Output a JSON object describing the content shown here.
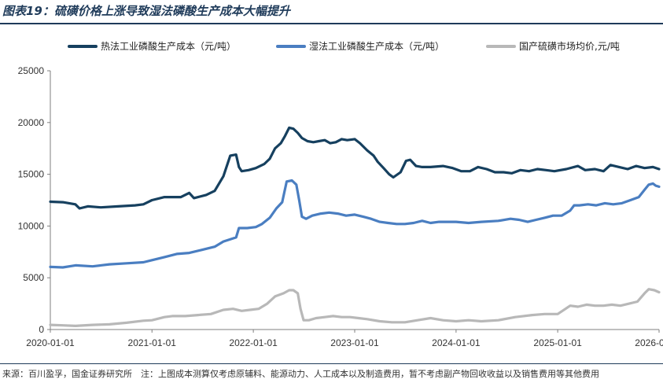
{
  "header": {
    "title": "图表19：硫磺价格上涨导致湿法磷酸生产成本大幅提升"
  },
  "footer": {
    "source": "来源：百川盈孚，国金证券研究所　注：上图成本测算仅考虑原辅料、能源动力、人工成本以及制造费用，暂不考虑副产物回收收益以及销售费用等其他费用"
  },
  "chart_data": {
    "type": "line",
    "title": "",
    "xlabel": "",
    "ylabel": "",
    "ylim": [
      0,
      25000
    ],
    "xlim": [
      "2020-01-01",
      "2026-01-01"
    ],
    "y_ticks": [
      0,
      5000,
      10000,
      15000,
      20000,
      25000
    ],
    "y_tick_labels": [
      "0",
      "5000",
      "10000",
      "15000",
      "20000",
      "25000"
    ],
    "x_ticks": [
      "2020-01-01",
      "2021-01-01",
      "2022-01-01",
      "2023-01-01",
      "2024-01-01",
      "2025-01-01",
      "2026-01-01"
    ],
    "x_tick_labels": [
      "2020-01-01",
      "2021-01-01",
      "2022-01-01",
      "2023-01-01",
      "2024-01-01",
      "2025-01-01",
      "2026-01-01"
    ],
    "grid": false,
    "legend_position": "top",
    "series": [
      {
        "name": "热法工业磷酸生产成本（元/吨）",
        "color": "#16405f",
        "points": [
          [
            "2020-01-01",
            12350
          ],
          [
            "2020-02-15",
            12300
          ],
          [
            "2020-03-31",
            12100
          ],
          [
            "2020-04-15",
            11700
          ],
          [
            "2020-05-15",
            11900
          ],
          [
            "2020-07-01",
            11800
          ],
          [
            "2020-09-01",
            11900
          ],
          [
            "2020-11-01",
            12000
          ],
          [
            "2020-12-01",
            12100
          ],
          [
            "2021-01-01",
            12500
          ],
          [
            "2021-02-15",
            12800
          ],
          [
            "2021-04-15",
            12800
          ],
          [
            "2021-05-15",
            13200
          ],
          [
            "2021-06-01",
            12700
          ],
          [
            "2021-07-15",
            13000
          ],
          [
            "2021-08-15",
            13400
          ],
          [
            "2021-09-15",
            14800
          ],
          [
            "2021-10-10",
            16800
          ],
          [
            "2021-10-31",
            16900
          ],
          [
            "2021-11-10",
            15700
          ],
          [
            "2021-11-20",
            15300
          ],
          [
            "2021-12-15",
            15400
          ],
          [
            "2022-01-10",
            15600
          ],
          [
            "2022-02-10",
            16000
          ],
          [
            "2022-03-01",
            16500
          ],
          [
            "2022-03-20",
            17500
          ],
          [
            "2022-04-10",
            18000
          ],
          [
            "2022-04-25",
            18700
          ],
          [
            "2022-05-10",
            19500
          ],
          [
            "2022-05-25",
            19400
          ],
          [
            "2022-06-10",
            19000
          ],
          [
            "2022-06-25",
            18500
          ],
          [
            "2022-07-15",
            18200
          ],
          [
            "2022-08-05",
            18100
          ],
          [
            "2022-08-25",
            18200
          ],
          [
            "2022-09-15",
            18300
          ],
          [
            "2022-10-05",
            18000
          ],
          [
            "2022-10-25",
            18100
          ],
          [
            "2022-11-15",
            18400
          ],
          [
            "2022-12-05",
            18300
          ],
          [
            "2023-01-01",
            18400
          ],
          [
            "2023-01-20",
            18000
          ],
          [
            "2023-02-15",
            17300
          ],
          [
            "2023-03-10",
            16800
          ],
          [
            "2023-03-25",
            16200
          ],
          [
            "2023-04-15",
            15600
          ],
          [
            "2023-05-05",
            15000
          ],
          [
            "2023-05-20",
            14700
          ],
          [
            "2023-06-15",
            15200
          ],
          [
            "2023-07-05",
            16300
          ],
          [
            "2023-07-20",
            16400
          ],
          [
            "2023-08-10",
            15800
          ],
          [
            "2023-09-01",
            15700
          ],
          [
            "2023-10-01",
            15700
          ],
          [
            "2023-11-15",
            15800
          ],
          [
            "2023-12-20",
            15600
          ],
          [
            "2024-01-20",
            15300
          ],
          [
            "2024-02-20",
            15300
          ],
          [
            "2024-03-20",
            15700
          ],
          [
            "2024-04-20",
            15500
          ],
          [
            "2024-05-20",
            15200
          ],
          [
            "2024-06-20",
            15200
          ],
          [
            "2024-07-20",
            15100
          ],
          [
            "2024-08-20",
            15400
          ],
          [
            "2024-09-20",
            15300
          ],
          [
            "2024-10-20",
            15500
          ],
          [
            "2024-11-20",
            15400
          ],
          [
            "2024-12-20",
            15300
          ],
          [
            "2025-02-01",
            15500
          ],
          [
            "2025-03-15",
            15800
          ],
          [
            "2025-04-10",
            15400
          ],
          [
            "2025-05-15",
            15500
          ],
          [
            "2025-06-15",
            15300
          ],
          [
            "2025-07-10",
            15900
          ],
          [
            "2025-08-10",
            15700
          ],
          [
            "2025-09-10",
            15500
          ],
          [
            "2025-10-10",
            15800
          ],
          [
            "2025-11-10",
            15600
          ],
          [
            "2025-12-10",
            15700
          ],
          [
            "2026-01-01",
            15500
          ]
        ]
      },
      {
        "name": "湿法工业磷酸生产成本（元/吨）",
        "color": "#4a7ec1",
        "points": [
          [
            "2020-01-01",
            6050
          ],
          [
            "2020-02-15",
            6000
          ],
          [
            "2020-04-01",
            6200
          ],
          [
            "2020-06-01",
            6100
          ],
          [
            "2020-08-01",
            6300
          ],
          [
            "2020-10-01",
            6400
          ],
          [
            "2020-12-01",
            6500
          ],
          [
            "2021-01-01",
            6700
          ],
          [
            "2021-02-15",
            7000
          ],
          [
            "2021-03-31",
            7300
          ],
          [
            "2021-05-15",
            7400
          ],
          [
            "2021-06-30",
            7700
          ],
          [
            "2021-08-15",
            8000
          ],
          [
            "2021-09-15",
            8500
          ],
          [
            "2021-10-31",
            8900
          ],
          [
            "2021-11-10",
            9800
          ],
          [
            "2021-12-10",
            9800
          ],
          [
            "2022-01-10",
            9900
          ],
          [
            "2022-02-01",
            10200
          ],
          [
            "2022-03-01",
            10800
          ],
          [
            "2022-03-25",
            11700
          ],
          [
            "2022-04-15",
            12300
          ],
          [
            "2022-05-01",
            14300
          ],
          [
            "2022-05-20",
            14400
          ],
          [
            "2022-06-05",
            14000
          ],
          [
            "2022-06-15",
            12500
          ],
          [
            "2022-06-25",
            10900
          ],
          [
            "2022-07-10",
            10700
          ],
          [
            "2022-08-01",
            11000
          ],
          [
            "2022-09-01",
            11200
          ],
          [
            "2022-10-01",
            11300
          ],
          [
            "2022-11-01",
            11200
          ],
          [
            "2022-12-01",
            11000
          ],
          [
            "2023-01-01",
            11100
          ],
          [
            "2023-02-01",
            10900
          ],
          [
            "2023-03-01",
            10700
          ],
          [
            "2023-04-01",
            10400
          ],
          [
            "2023-05-01",
            10300
          ],
          [
            "2023-06-01",
            10200
          ],
          [
            "2023-07-01",
            10200
          ],
          [
            "2023-08-01",
            10300
          ],
          [
            "2023-09-01",
            10500
          ],
          [
            "2023-10-01",
            10300
          ],
          [
            "2023-11-01",
            10400
          ],
          [
            "2023-12-01",
            10400
          ],
          [
            "2024-01-01",
            10400
          ],
          [
            "2024-02-15",
            10300
          ],
          [
            "2024-04-01",
            10400
          ],
          [
            "2024-06-01",
            10500
          ],
          [
            "2024-07-15",
            10700
          ],
          [
            "2024-08-15",
            10600
          ],
          [
            "2024-09-15",
            10400
          ],
          [
            "2024-10-15",
            10600
          ],
          [
            "2024-11-15",
            10800
          ],
          [
            "2024-12-15",
            11000
          ],
          [
            "2025-01-15",
            11000
          ],
          [
            "2025-02-15",
            11500
          ],
          [
            "2025-03-01",
            12000
          ],
          [
            "2025-03-20",
            12000
          ],
          [
            "2025-04-20",
            12100
          ],
          [
            "2025-05-20",
            12000
          ],
          [
            "2025-06-20",
            12200
          ],
          [
            "2025-07-20",
            12100
          ],
          [
            "2025-08-20",
            12200
          ],
          [
            "2025-09-20",
            12500
          ],
          [
            "2025-10-20",
            12800
          ],
          [
            "2025-11-10",
            13500
          ],
          [
            "2025-11-25",
            14000
          ],
          [
            "2025-12-10",
            14100
          ],
          [
            "2025-12-20",
            13900
          ],
          [
            "2026-01-01",
            13800
          ]
        ]
      },
      {
        "name": "国产硫磺市场均价,元/吨",
        "color": "#b8b8b8",
        "points": [
          [
            "2020-01-01",
            450
          ],
          [
            "2020-02-15",
            400
          ],
          [
            "2020-04-01",
            350
          ],
          [
            "2020-06-01",
            450
          ],
          [
            "2020-08-01",
            500
          ],
          [
            "2020-10-01",
            650
          ],
          [
            "2020-12-01",
            850
          ],
          [
            "2021-01-01",
            900
          ],
          [
            "2021-02-15",
            1200
          ],
          [
            "2021-03-15",
            1300
          ],
          [
            "2021-05-01",
            1300
          ],
          [
            "2021-06-15",
            1400
          ],
          [
            "2021-08-01",
            1500
          ],
          [
            "2021-09-15",
            1900
          ],
          [
            "2021-10-20",
            2000
          ],
          [
            "2021-11-20",
            1800
          ],
          [
            "2021-12-20",
            1900
          ],
          [
            "2022-01-20",
            2000
          ],
          [
            "2022-02-20",
            2500
          ],
          [
            "2022-03-20",
            3200
          ],
          [
            "2022-04-20",
            3500
          ],
          [
            "2022-05-10",
            3800
          ],
          [
            "2022-05-25",
            3800
          ],
          [
            "2022-06-10",
            3500
          ],
          [
            "2022-06-20",
            2000
          ],
          [
            "2022-07-01",
            900
          ],
          [
            "2022-07-20",
            900
          ],
          [
            "2022-08-15",
            1100
          ],
          [
            "2022-09-15",
            1200
          ],
          [
            "2022-10-15",
            1300
          ],
          [
            "2022-11-15",
            1200
          ],
          [
            "2022-12-15",
            1200
          ],
          [
            "2023-01-15",
            1100
          ],
          [
            "2023-02-15",
            1000
          ],
          [
            "2023-04-01",
            800
          ],
          [
            "2023-05-15",
            700
          ],
          [
            "2023-07-01",
            700
          ],
          [
            "2023-08-15",
            900
          ],
          [
            "2023-10-01",
            1100
          ],
          [
            "2023-11-15",
            900
          ],
          [
            "2024-01-01",
            800
          ],
          [
            "2024-02-15",
            900
          ],
          [
            "2024-04-01",
            800
          ],
          [
            "2024-06-01",
            900
          ],
          [
            "2024-08-01",
            1200
          ],
          [
            "2024-10-01",
            1400
          ],
          [
            "2024-11-15",
            1500
          ],
          [
            "2025-01-01",
            1500
          ],
          [
            "2025-02-15",
            2300
          ],
          [
            "2025-03-15",
            2200
          ],
          [
            "2025-04-15",
            2400
          ],
          [
            "2025-05-15",
            2300
          ],
          [
            "2025-06-15",
            2300
          ],
          [
            "2025-07-15",
            2400
          ],
          [
            "2025-08-15",
            2300
          ],
          [
            "2025-09-15",
            2500
          ],
          [
            "2025-10-15",
            2700
          ],
          [
            "2025-11-10",
            3500
          ],
          [
            "2025-11-25",
            3900
          ],
          [
            "2025-12-15",
            3800
          ],
          [
            "2026-01-01",
            3600
          ]
        ]
      }
    ]
  }
}
